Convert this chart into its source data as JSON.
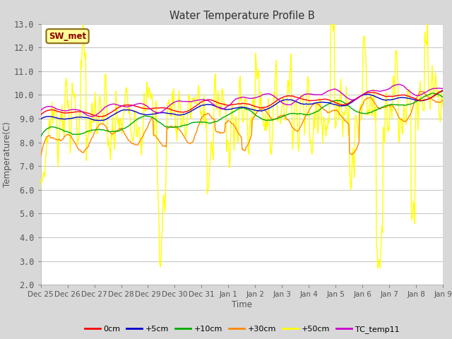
{
  "title": "Water Temperature Profile B",
  "xlabel": "Time",
  "ylabel": "Temperature(C)",
  "ylim": [
    2.0,
    13.0
  ],
  "yticks": [
    2.0,
    3.0,
    4.0,
    5.0,
    6.0,
    7.0,
    8.0,
    9.0,
    10.0,
    11.0,
    12.0,
    13.0
  ],
  "x_labels": [
    "Dec 25",
    "Dec 26",
    "Dec 27",
    "Dec 28",
    "Dec 29",
    "Dec 30",
    "Dec 31",
    "Jan 1",
    "Jan 2",
    "Jan 3",
    "Jan 4",
    "Jan 5",
    "Jan 6",
    "Jan 7",
    "Jan 8",
    "Jan 9"
  ],
  "annotation_text": "SW_met",
  "annotation_color": "#8B0000",
  "annotation_bg": "#FFFF99",
  "annotation_border": "#8B6914",
  "series": {
    "0cm": {
      "color": "#FF0000",
      "lw": 1.0
    },
    "+5cm": {
      "color": "#0000CC",
      "lw": 1.0
    },
    "+10cm": {
      "color": "#00AA00",
      "lw": 1.0
    },
    "+30cm": {
      "color": "#FF8800",
      "lw": 1.0
    },
    "+50cm": {
      "color": "#FFFF00",
      "lw": 1.0
    },
    "TC_temp11": {
      "color": "#CC00CC",
      "lw": 1.0
    }
  },
  "bg_color": "#D8D8D8",
  "plot_bg": "#FFFFFF",
  "grid_color": "#C8C8C8",
  "n_points": 600
}
